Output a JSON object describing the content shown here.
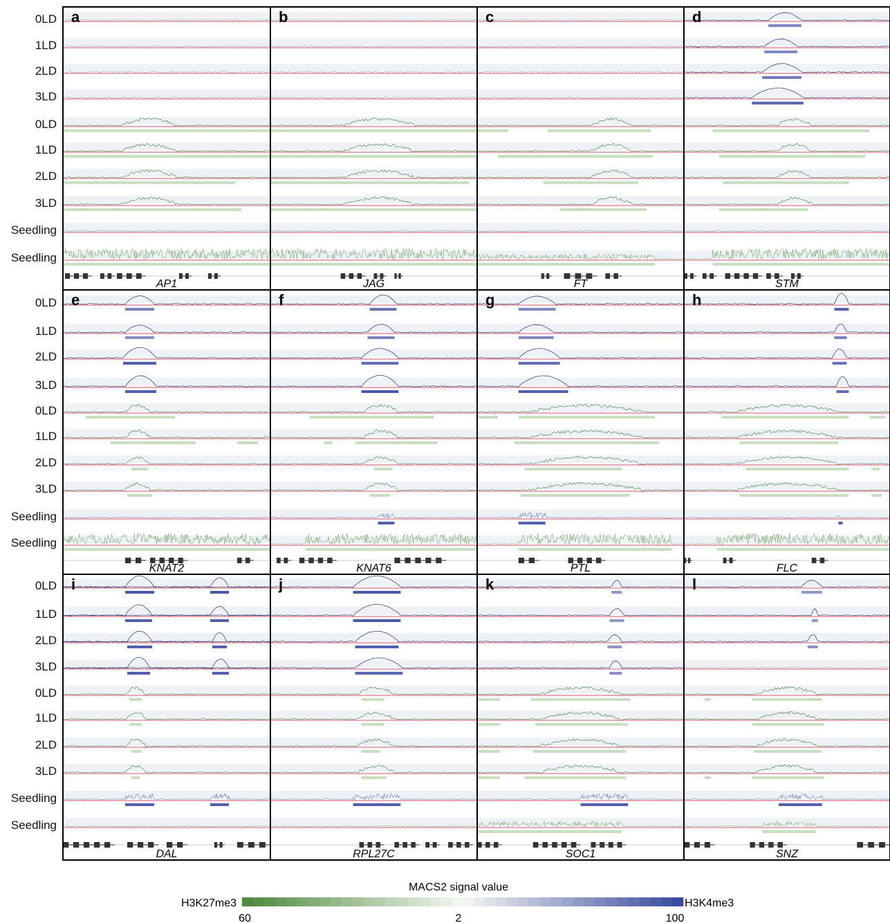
{
  "row_labels": [
    "0LD",
    "1LD",
    "2LD",
    "3LD",
    "0LD",
    "1LD",
    "2LD",
    "3LD",
    "Seedling",
    "Seedling"
  ],
  "panels": [
    {
      "letter": "a",
      "gene": "AP1",
      "k4": [
        {
          "s": 0,
          "e": 0
        }
      ],
      "k4on": [
        false,
        false,
        false,
        false
      ],
      "k27": [
        [
          0.0,
          1.0
        ],
        [
          0.0,
          1.0
        ],
        [
          0.0,
          0.83
        ],
        [
          0.0,
          0.86
        ]
      ],
      "k27peak": [
        0.28,
        0.55
      ],
      "seedK4": null,
      "seedK27": [
        0.0,
        1.0
      ],
      "seedHigh": true,
      "genes": [
        [
          0.01,
          0.14
        ],
        [
          0.18,
          0.25
        ],
        [
          0.26,
          0.4
        ],
        [
          0.56,
          0.62
        ],
        [
          0.7,
          0.76
        ]
      ]
    },
    {
      "letter": "b",
      "gene": "JAG",
      "k4on": [
        false,
        false,
        false,
        false
      ],
      "k27": [
        [
          0.0,
          1.0
        ],
        [
          0.0,
          1.0
        ],
        [
          0.0,
          0.96
        ],
        [
          0.0,
          1.0
        ]
      ],
      "k27peak": [
        0.35,
        0.7
      ],
      "seedK4": null,
      "seedK27": [
        0.0,
        1.0
      ],
      "seedHigh": true,
      "genes": [
        [
          0.34,
          0.46
        ],
        [
          0.5,
          0.56
        ],
        [
          0.6,
          0.64
        ]
      ]
    },
    {
      "letter": "c",
      "gene": "FT",
      "k4on": [
        false,
        false,
        false,
        false
      ],
      "k27": [
        [
          0.0,
          0.15
        ],
        [
          0.1,
          0.85
        ],
        [
          0.32,
          0.78
        ],
        [
          0.4,
          0.82
        ]
      ],
      "k27peak": [
        0.55,
        0.75
      ],
      "k27b": [
        [
          0.34,
          0.84
        ],
        null,
        null,
        null
      ],
      "seedK4": null,
      "seedK27": [
        0.0,
        0.86
      ],
      "seedHigh": false,
      "genes": [
        [
          0.31,
          0.36
        ],
        [
          0.42,
          0.58
        ],
        [
          0.62,
          0.7
        ]
      ]
    },
    {
      "letter": "d",
      "gene": "STM",
      "k4": [
        [
          0.41,
          0.57
        ],
        [
          0.39,
          0.55
        ],
        [
          0.38,
          0.57
        ],
        [
          0.33,
          0.58
        ]
      ],
      "k4shade": [
        0.55,
        0.55,
        0.65,
        0.78
      ],
      "k4on": [
        true,
        true,
        true,
        true
      ],
      "k27": [
        [
          0.14,
          0.9
        ],
        [
          0.17,
          0.88
        ],
        [
          0.19,
          0.8
        ],
        [
          0.17,
          0.6
        ]
      ],
      "k27peak": [
        0.45,
        0.62
      ],
      "seedK4": null,
      "seedK27": [
        0.14,
        1.0
      ],
      "seedHigh": true,
      "genes": [
        [
          0.0,
          0.06
        ],
        [
          0.09,
          0.16
        ],
        [
          0.2,
          0.38
        ],
        [
          0.4,
          0.48
        ],
        [
          0.52,
          0.58
        ]
      ]
    },
    {
      "letter": "e",
      "gene": "KNAT2",
      "k4": [
        [
          0.3,
          0.44
        ],
        [
          0.3,
          0.44
        ],
        [
          0.29,
          0.45
        ],
        [
          0.3,
          0.45
        ]
      ],
      "k4shade": [
        0.6,
        0.5,
        0.85,
        0.85
      ],
      "k4on": [
        true,
        true,
        true,
        true
      ],
      "k27": [
        [
          0.11,
          0.54
        ],
        [
          0.23,
          0.64
        ],
        [
          0.33,
          0.41
        ],
        [
          0.31,
          0.43
        ]
      ],
      "k27b": [
        null,
        [
          0.84,
          0.94
        ],
        null,
        null
      ],
      "k27peak": [
        0.3,
        0.42
      ],
      "seedK4": null,
      "seedK27": [
        0.0,
        1.0
      ],
      "seedHigh": true,
      "genes": [
        [
          0.3,
          0.4
        ],
        [
          0.42,
          0.6
        ],
        [
          0.84,
          0.92
        ]
      ]
    },
    {
      "letter": "f",
      "gene": "KNAT6",
      "k4": [
        [
          0.48,
          0.61
        ],
        [
          0.47,
          0.6
        ],
        [
          0.44,
          0.62
        ],
        [
          0.44,
          0.62
        ]
      ],
      "k4shade": [
        0.7,
        0.6,
        0.75,
        0.9
      ],
      "k4on": [
        true,
        true,
        true,
        true
      ],
      "k27": [
        [
          0.19,
          0.79
        ],
        [
          0.41,
          0.81
        ],
        [
          0.5,
          0.59
        ],
        [
          0.48,
          0.58
        ]
      ],
      "k27b": [
        null,
        [
          0.26,
          0.3
        ],
        null,
        null
      ],
      "k27peak": [
        0.45,
        0.62
      ],
      "seedK4": [
        0.52,
        0.6
      ],
      "seedK27": [
        0.17,
        1.0
      ],
      "seedHigh": true,
      "genes": [
        [
          0.03,
          0.1
        ],
        [
          0.14,
          0.32
        ],
        [
          0.6,
          0.85
        ]
      ]
    },
    {
      "letter": "g",
      "gene": "PTL",
      "k4": [
        [
          0.2,
          0.38
        ],
        [
          0.2,
          0.37
        ],
        [
          0.2,
          0.4
        ],
        [
          0.2,
          0.44
        ]
      ],
      "k4shade": [
        0.55,
        0.55,
        0.75,
        0.85
      ],
      "k4on": [
        true,
        true,
        true,
        true
      ],
      "k27": [
        [
          0.2,
          0.86
        ],
        [
          0.18,
          0.88
        ],
        [
          0.23,
          0.7
        ],
        [
          0.21,
          0.74
        ]
      ],
      "k27b": [
        [
          0.0,
          0.1
        ],
        null,
        null,
        null
      ],
      "k27peak": [
        0.25,
        0.8
      ],
      "seedK4": [
        0.2,
        0.33
      ],
      "seedK27": [
        0.2,
        0.94
      ],
      "seedHigh": true,
      "genes": [
        [
          0.2,
          0.3
        ],
        [
          0.44,
          0.62
        ]
      ]
    },
    {
      "letter": "h",
      "gene": "FLC",
      "k4": [
        [
          0.73,
          0.8
        ],
        [
          0.73,
          0.79
        ],
        [
          0.72,
          0.79
        ],
        [
          0.74,
          0.8
        ]
      ],
      "k4shade": [
        0.85,
        0.6,
        0.7,
        0.75
      ],
      "k4on": [
        true,
        true,
        true,
        true
      ],
      "k27": [
        [
          0.18,
          0.8
        ],
        [
          0.27,
          0.75
        ],
        [
          0.3,
          0.8
        ],
        [
          0.27,
          0.8
        ]
      ],
      "k27b": [
        [
          0.9,
          0.98
        ],
        null,
        [
          0.91,
          0.95
        ],
        [
          0.91,
          0.96
        ]
      ],
      "k27peak": [
        0.25,
        0.75
      ],
      "seedK4": [
        0.75,
        0.77
      ],
      "seedK27": [
        0.16,
        1.0
      ],
      "seedHigh": true,
      "genes": [
        [
          0.0,
          0.04
        ],
        [
          0.19,
          0.25
        ],
        [
          0.62,
          0.7
        ]
      ]
    },
    {
      "letter": "i",
      "gene": "DAL",
      "k4": [
        [
          0.3,
          0.44
        ],
        [
          0.3,
          0.43
        ],
        [
          0.31,
          0.43
        ],
        [
          0.31,
          0.42
        ]
      ],
      "k4b": [
        [
          0.71,
          0.8
        ],
        [
          0.71,
          0.8
        ],
        [
          0.72,
          0.79
        ],
        [
          0.72,
          0.8
        ]
      ],
      "k4shade": [
        0.9,
        0.85,
        0.85,
        0.85
      ],
      "k4on": [
        true,
        true,
        true,
        true
      ],
      "k27": [
        [
          0.32,
          0.38
        ],
        [
          0.32,
          0.38
        ],
        [
          0.33,
          0.38
        ],
        [
          0.33,
          0.37
        ]
      ],
      "k27peak": [
        0.3,
        0.4
      ],
      "seedK4": [
        0.3,
        0.44
      ],
      "seedK4b": [
        0.71,
        0.8
      ],
      "seedK27": null,
      "seedHigh": false,
      "genes": [
        [
          0.0,
          0.25
        ],
        [
          0.31,
          0.46
        ],
        [
          0.5,
          0.6
        ],
        [
          0.73,
          0.78
        ],
        [
          0.84,
          1.0
        ]
      ]
    },
    {
      "letter": "j",
      "gene": "RPL27C",
      "k4": [
        [
          0.4,
          0.63
        ],
        [
          0.4,
          0.63
        ],
        [
          0.41,
          0.62
        ],
        [
          0.41,
          0.64
        ]
      ],
      "k4shade": [
        0.9,
        0.9,
        0.85,
        0.8
      ],
      "k4on": [
        true,
        true,
        true,
        true
      ],
      "k27": [
        [
          0.44,
          0.55
        ],
        [
          0.44,
          0.55
        ],
        [
          0.44,
          0.53
        ],
        [
          0.44,
          0.56
        ]
      ],
      "k27peak": [
        0.42,
        0.6
      ],
      "seedK4": [
        0.4,
        0.63
      ],
      "seedK27": null,
      "seedHigh": false,
      "genes": [
        [
          0.43,
          0.55
        ],
        [
          0.6,
          0.72
        ],
        [
          0.75,
          0.82
        ],
        [
          0.86,
          0.98
        ]
      ]
    },
    {
      "letter": "k",
      "gene": "SOC1",
      "k4": [
        [
          0.65,
          0.7
        ],
        [
          0.64,
          0.71
        ],
        [
          0.63,
          0.7
        ],
        [
          0.64,
          0.7
        ]
      ],
      "k4shade": [
        0.45,
        0.45,
        0.45,
        0.5
      ],
      "k4on": [
        true,
        true,
        true,
        true
      ],
      "k27": [
        [
          0.26,
          0.74
        ],
        [
          0.28,
          0.73
        ],
        [
          0.27,
          0.72
        ],
        [
          0.23,
          0.72
        ]
      ],
      "k27b": [
        [
          0.0,
          0.11
        ],
        [
          0.0,
          0.11
        ],
        [
          0.0,
          0.11
        ],
        [
          0.0,
          0.11
        ]
      ],
      "k27peak": [
        0.3,
        0.7
      ],
      "seedK4": [
        0.5,
        0.73
      ],
      "seedK27": [
        0.0,
        0.7
      ],
      "seedHigh": false,
      "genes": [
        [
          0.0,
          0.12
        ],
        [
          0.27,
          0.5
        ],
        [
          0.55,
          0.72
        ]
      ]
    },
    {
      "letter": "l",
      "gene": "SNZ",
      "k4": [
        [
          0.57,
          0.67
        ],
        [
          0.62,
          0.65
        ],
        [
          0.6,
          0.65
        ],
        [
          0.0,
          0.0
        ]
      ],
      "k4shade": [
        0.45,
        0.45,
        0.5,
        0.0
      ],
      "k4on": [
        true,
        true,
        true,
        false
      ],
      "k27": [
        [
          0.33,
          0.67
        ],
        [
          0.33,
          0.68
        ],
        [
          0.34,
          0.67
        ],
        [
          0.33,
          0.68
        ]
      ],
      "k27b": [
        [
          0.1,
          0.13
        ],
        null,
        null,
        [
          0.1,
          0.13
        ]
      ],
      "k27peak": [
        0.35,
        0.65
      ],
      "seedK4": [
        0.46,
        0.67
      ],
      "seedK27": [
        0.38,
        0.64
      ],
      "seedHigh": false,
      "genes": [
        [
          0.0,
          0.15
        ],
        [
          0.32,
          0.5
        ],
        [
          0.84,
          1.0
        ]
      ]
    }
  ],
  "legend": {
    "title": "MACS2 signal value",
    "left_label": "H3K27me3",
    "right_label": "H3K4me3",
    "tick_left": "60",
    "tick_mid": "2",
    "tick_right": "100",
    "color_k27": "#4e8a3c",
    "color_k4": "#3a4aa0"
  },
  "colors": {
    "panel_border": "#000000",
    "track_bg_a": "#eef2f7",
    "track_bg_b": "#f9fafc",
    "baseline": "#c9263d",
    "k27_line": "#3e7a3a",
    "k4_line": "#26306e"
  }
}
